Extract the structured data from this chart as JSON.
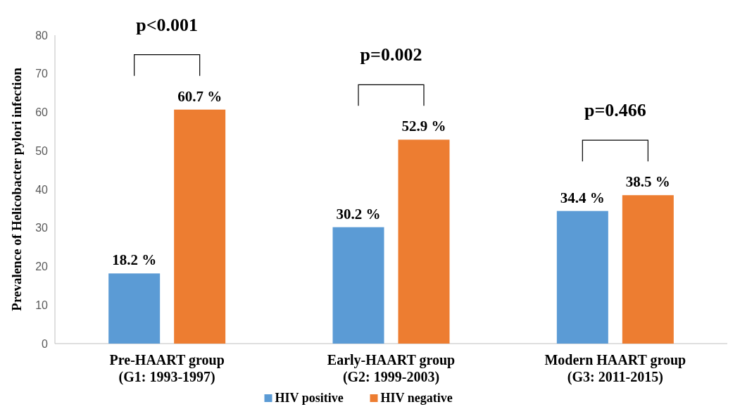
{
  "chart_data": {
    "type": "bar",
    "ylabel": "Prevalence of Helicobacter pylori infection",
    "categories": [
      "Pre-HAART group\n(G1: 1993-1997)",
      "Early-HAART group\n(G2: 1999-2003)",
      "Modern HAART group\n(G3: 2011-2015)"
    ],
    "series": [
      {
        "name": "HIV positive",
        "color": "#5b9bd5",
        "values": [
          18.2,
          30.2,
          34.4
        ],
        "value_labels": [
          "18.2 %",
          "30.2 %",
          "34.4 %"
        ]
      },
      {
        "name": "HIV negative",
        "color": "#ed7d31",
        "values": [
          60.7,
          52.9,
          38.5
        ],
        "value_labels": [
          "60.7 %",
          "52.9 %",
          "38.5 %"
        ]
      }
    ],
    "ylim": [
      0,
      80
    ],
    "yticks": [
      0,
      10,
      20,
      30,
      40,
      50,
      60,
      70,
      80
    ],
    "grid": false,
    "legend": "bottom",
    "annotations": [
      "p<0.001",
      "p=0.002",
      "p=0.466"
    ]
  }
}
